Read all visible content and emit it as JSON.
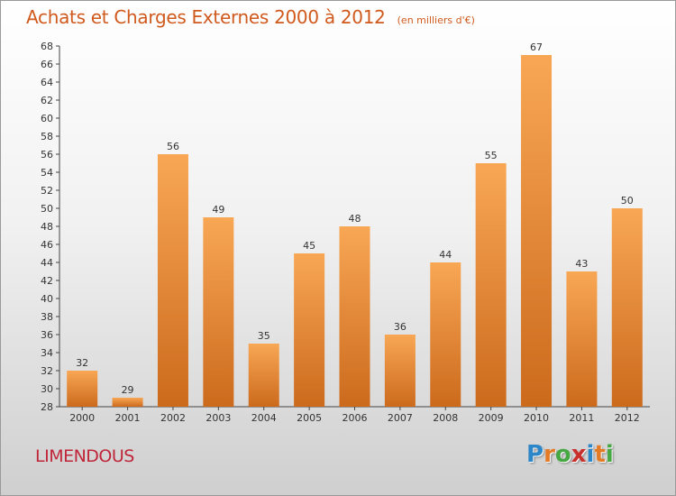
{
  "header": {
    "title": "Achats et Charges Externes 2000 à 2012",
    "unit": "(en milliers d'€)"
  },
  "footer": {
    "commune": "LIMENDOUS",
    "logo_text": "Proxiti"
  },
  "colors": {
    "title": "#d05a1d",
    "commune": "#c0263a",
    "bar_top": "#f8a755",
    "bar_bottom": "#cc6a1c",
    "logo_letters": [
      "#2c86c8",
      "#e37b26",
      "#47a843",
      "#c9302c",
      "#2c86c8",
      "#e37b26",
      "#47a843"
    ]
  },
  "chart_data": {
    "type": "bar",
    "title": "Achats et Charges Externes 2000 à 2012",
    "subtitle": "(en milliers d'€)",
    "categories": [
      "2000",
      "2001",
      "2002",
      "2003",
      "2004",
      "2005",
      "2006",
      "2007",
      "2008",
      "2009",
      "2010",
      "2011",
      "2012"
    ],
    "values": [
      32,
      29,
      56,
      49,
      35,
      45,
      48,
      36,
      44,
      55,
      67,
      43,
      50
    ],
    "ylim": [
      28,
      68
    ],
    "ytick_step": 2,
    "grid": false,
    "legend": "none"
  }
}
